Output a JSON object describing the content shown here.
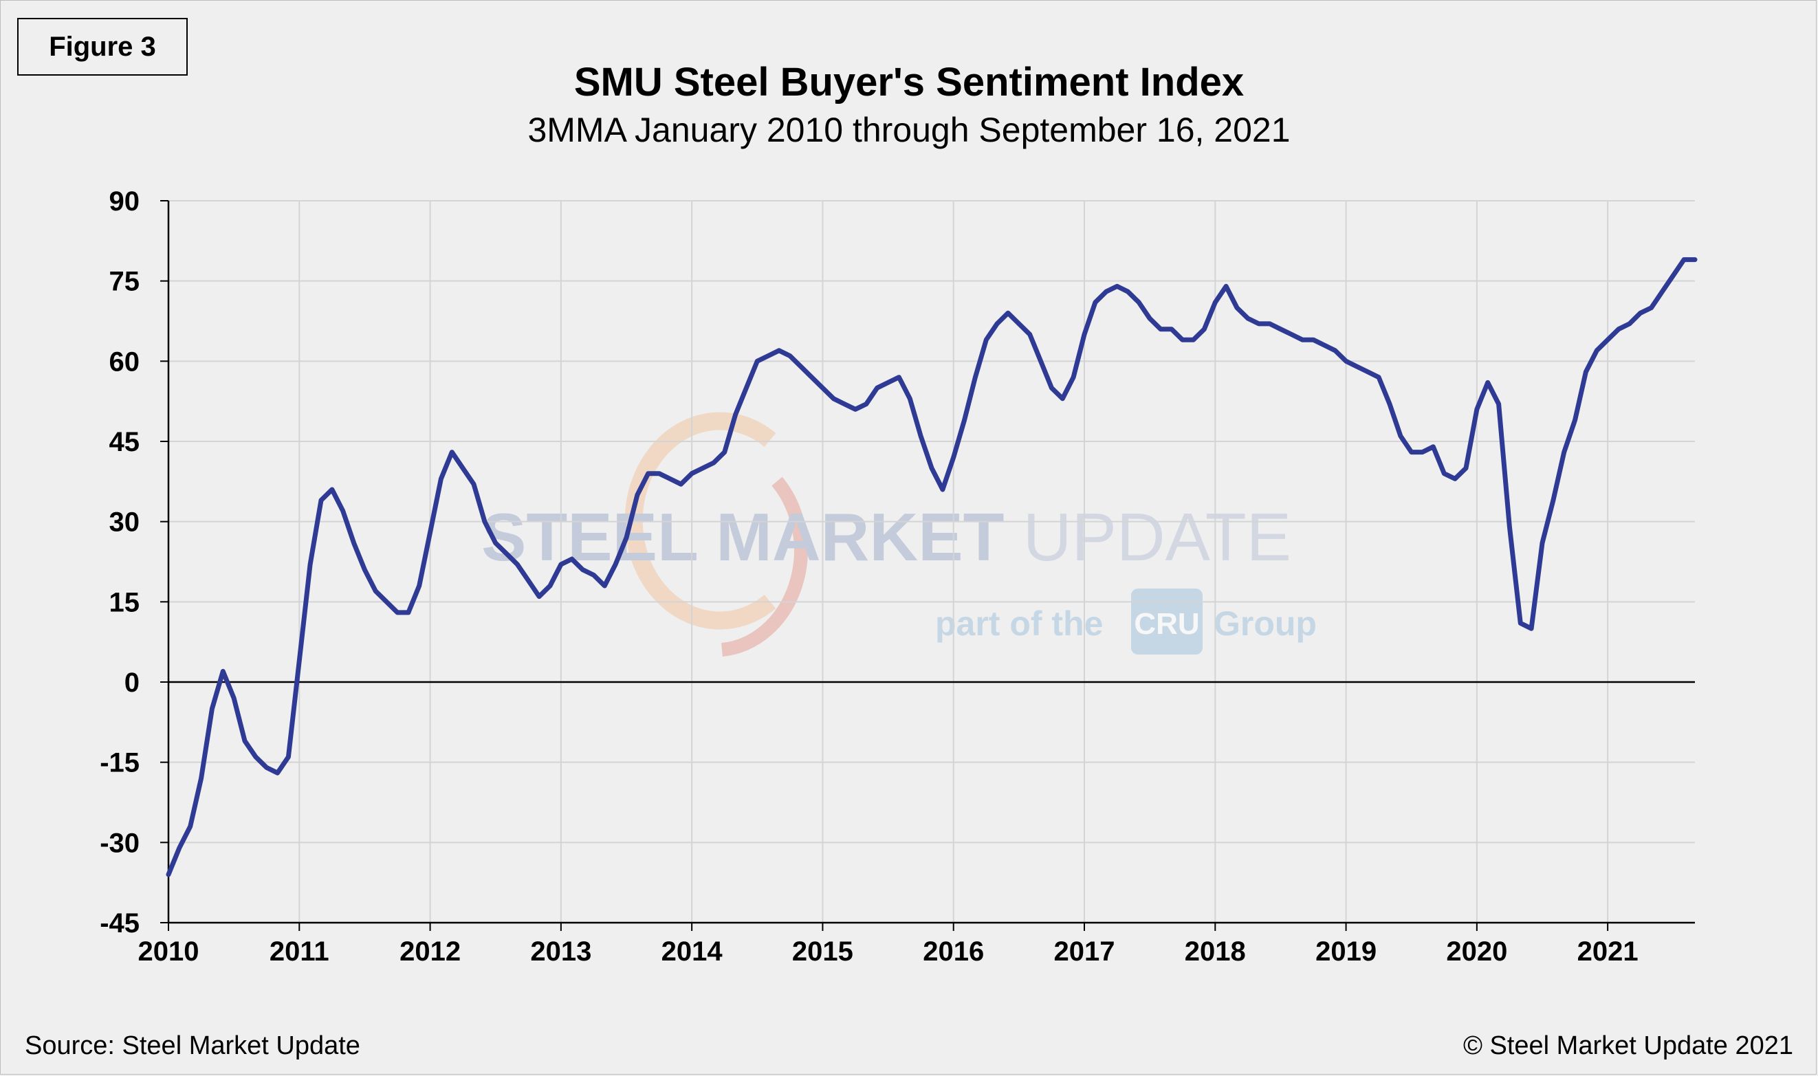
{
  "figure_label": "Figure 3",
  "footer": {
    "source": "Source: Steel Market Update",
    "copyright": "© Steel Market Update 2021"
  },
  "watermark": {
    "brand": "STEEL MARKET",
    "brand_light": "UPDATE",
    "tagline_before": "part of the",
    "tagline_badge": "CRU",
    "tagline_after": "Group"
  },
  "colors": {
    "line": "#2e3a94",
    "grid": "#d4d4d4",
    "zero_line": "#000000",
    "background": "#efefef"
  },
  "chart_data": {
    "type": "line",
    "title": "SMU Steel Buyer's Sentiment Index",
    "subtitle": "3MMA January 2010 through September 16, 2021",
    "xlabel": "",
    "ylabel": "",
    "x_ticks": [
      "2010",
      "2011",
      "2012",
      "2013",
      "2014",
      "2015",
      "2016",
      "2017",
      "2018",
      "2019",
      "2020",
      "2021"
    ],
    "y_ticks": [
      90,
      75,
      60,
      45,
      30,
      15,
      0,
      -15,
      -30,
      -45
    ],
    "xlim": [
      "2010-01",
      "2021-09"
    ],
    "ylim": [
      -45,
      90
    ],
    "grid": true,
    "legend": "none",
    "series": [
      {
        "points": [
          [
            "2010-01",
            -36
          ],
          [
            "2010-02",
            -31
          ],
          [
            "2010-03",
            -27
          ],
          [
            "2010-04",
            -18
          ],
          [
            "2010-05",
            -5
          ],
          [
            "2010-06",
            2
          ],
          [
            "2010-07",
            -3
          ],
          [
            "2010-08",
            -11
          ],
          [
            "2010-09",
            -14
          ],
          [
            "2010-10",
            -16
          ],
          [
            "2010-11",
            -17
          ],
          [
            "2010-12",
            -14
          ],
          [
            "2011-01",
            4
          ],
          [
            "2011-02",
            22
          ],
          [
            "2011-03",
            34
          ],
          [
            "2011-04",
            36
          ],
          [
            "2011-05",
            32
          ],
          [
            "2011-06",
            26
          ],
          [
            "2011-07",
            21
          ],
          [
            "2011-08",
            17
          ],
          [
            "2011-09",
            15
          ],
          [
            "2011-10",
            13
          ],
          [
            "2011-11",
            13
          ],
          [
            "2011-12",
            18
          ],
          [
            "2012-01",
            28
          ],
          [
            "2012-02",
            38
          ],
          [
            "2012-03",
            43
          ],
          [
            "2012-04",
            40
          ],
          [
            "2012-05",
            37
          ],
          [
            "2012-06",
            30
          ],
          [
            "2012-07",
            26
          ],
          [
            "2012-08",
            24
          ],
          [
            "2012-09",
            22
          ],
          [
            "2012-10",
            19
          ],
          [
            "2012-11",
            16
          ],
          [
            "2012-12",
            18
          ],
          [
            "2013-01",
            22
          ],
          [
            "2013-02",
            23
          ],
          [
            "2013-03",
            21
          ],
          [
            "2013-04",
            20
          ],
          [
            "2013-05",
            18
          ],
          [
            "2013-06",
            22
          ],
          [
            "2013-07",
            27
          ],
          [
            "2013-08",
            35
          ],
          [
            "2013-09",
            39
          ],
          [
            "2013-10",
            39
          ],
          [
            "2013-11",
            38
          ],
          [
            "2013-12",
            37
          ],
          [
            "2014-01",
            39
          ],
          [
            "2014-02",
            40
          ],
          [
            "2014-03",
            41
          ],
          [
            "2014-04",
            43
          ],
          [
            "2014-05",
            50
          ],
          [
            "2014-06",
            55
          ],
          [
            "2014-07",
            60
          ],
          [
            "2014-08",
            61
          ],
          [
            "2014-09",
            62
          ],
          [
            "2014-10",
            61
          ],
          [
            "2014-11",
            59
          ],
          [
            "2014-12",
            57
          ],
          [
            "2015-01",
            55
          ],
          [
            "2015-02",
            53
          ],
          [
            "2015-03",
            52
          ],
          [
            "2015-04",
            51
          ],
          [
            "2015-05",
            52
          ],
          [
            "2015-06",
            55
          ],
          [
            "2015-07",
            56
          ],
          [
            "2015-08",
            57
          ],
          [
            "2015-09",
            53
          ],
          [
            "2015-10",
            46
          ],
          [
            "2015-11",
            40
          ],
          [
            "2015-12",
            36
          ],
          [
            "2016-01",
            42
          ],
          [
            "2016-02",
            49
          ],
          [
            "2016-03",
            57
          ],
          [
            "2016-04",
            64
          ],
          [
            "2016-05",
            67
          ],
          [
            "2016-06",
            69
          ],
          [
            "2016-07",
            67
          ],
          [
            "2016-08",
            65
          ],
          [
            "2016-09",
            60
          ],
          [
            "2016-10",
            55
          ],
          [
            "2016-11",
            53
          ],
          [
            "2016-12",
            57
          ],
          [
            "2017-01",
            65
          ],
          [
            "2017-02",
            71
          ],
          [
            "2017-03",
            73
          ],
          [
            "2017-04",
            74
          ],
          [
            "2017-05",
            73
          ],
          [
            "2017-06",
            71
          ],
          [
            "2017-07",
            68
          ],
          [
            "2017-08",
            66
          ],
          [
            "2017-09",
            66
          ],
          [
            "2017-10",
            64
          ],
          [
            "2017-11",
            64
          ],
          [
            "2017-12",
            66
          ],
          [
            "2018-01",
            71
          ],
          [
            "2018-02",
            74
          ],
          [
            "2018-03",
            70
          ],
          [
            "2018-04",
            68
          ],
          [
            "2018-05",
            67
          ],
          [
            "2018-06",
            67
          ],
          [
            "2018-07",
            66
          ],
          [
            "2018-08",
            65
          ],
          [
            "2018-09",
            64
          ],
          [
            "2018-10",
            64
          ],
          [
            "2018-11",
            63
          ],
          [
            "2018-12",
            62
          ],
          [
            "2019-01",
            60
          ],
          [
            "2019-02",
            59
          ],
          [
            "2019-03",
            58
          ],
          [
            "2019-04",
            57
          ],
          [
            "2019-05",
            52
          ],
          [
            "2019-06",
            46
          ],
          [
            "2019-07",
            43
          ],
          [
            "2019-08",
            43
          ],
          [
            "2019-09",
            44
          ],
          [
            "2019-10",
            39
          ],
          [
            "2019-11",
            38
          ],
          [
            "2019-12",
            40
          ],
          [
            "2020-01",
            51
          ],
          [
            "2020-02",
            56
          ],
          [
            "2020-03",
            52
          ],
          [
            "2020-04",
            29
          ],
          [
            "2020-05",
            11
          ],
          [
            "2020-06",
            10
          ],
          [
            "2020-07",
            26
          ],
          [
            "2020-08",
            34
          ],
          [
            "2020-09",
            43
          ],
          [
            "2020-10",
            49
          ],
          [
            "2020-11",
            58
          ],
          [
            "2020-12",
            62
          ],
          [
            "2021-01",
            64
          ],
          [
            "2021-02",
            66
          ],
          [
            "2021-03",
            67
          ],
          [
            "2021-04",
            69
          ],
          [
            "2021-05",
            70
          ],
          [
            "2021-06",
            73
          ],
          [
            "2021-07",
            76
          ],
          [
            "2021-08",
            79
          ],
          [
            "2021-09",
            79
          ]
        ]
      }
    ]
  }
}
